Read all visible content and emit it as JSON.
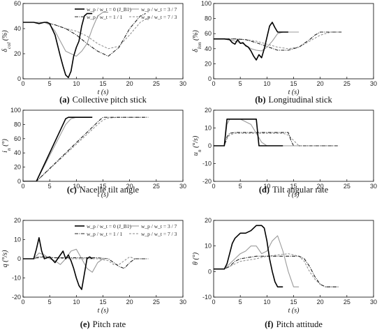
{
  "line_styles": {
    "r0": {
      "color": "#000000",
      "width": 1.6,
      "dash": ""
    },
    "r37": {
      "color": "#9a9a9a",
      "width": 1.1,
      "dash": ""
    },
    "r11": {
      "color": "#222222",
      "width": 1.1,
      "dash": "5,1.5,1,1.5"
    },
    "r73": {
      "color": "#8a8a8a",
      "width": 1.0,
      "dash": "3,2"
    }
  },
  "legend": {
    "r0": "w_p / w_t = 0  (J_B1)",
    "r37": "w_p / w_t = 3 / 7",
    "r11": "w_p / w_t = 1 / 1",
    "r73": "w_p / w_t = 7 / 3"
  },
  "chart_data": [
    {
      "id": "a",
      "type": "line",
      "caption_letter": "(a)",
      "caption_text": "Collective pitch stick",
      "xlabel": "t (s)",
      "ylabel": "δ_col (%)",
      "xlim": [
        0,
        30
      ],
      "ylim": [
        0,
        60
      ],
      "xticks": [
        0,
        5,
        10,
        15,
        20,
        25,
        30
      ],
      "yticks": [
        0,
        20,
        40,
        60
      ],
      "grid": false,
      "legend_position": "top-right",
      "series": [
        {
          "style": "r0",
          "legend_label": "w_p / w_t = 0  (J_B1)",
          "x": [
            0,
            2,
            3,
            4,
            4.5,
            5,
            6,
            7,
            7.5,
            8,
            8.5,
            9,
            9.5,
            10,
            10.5,
            11,
            11.5,
            12,
            12.5,
            13
          ],
          "y": [
            45,
            45,
            44,
            45,
            45,
            44,
            35,
            18,
            10,
            3,
            1,
            6,
            18,
            25,
            30,
            42,
            50,
            52,
            52,
            52
          ]
        },
        {
          "style": "r37",
          "legend_label": "w_p / w_t = 3 / 7",
          "x": [
            0,
            2,
            4,
            5,
            6,
            7,
            8,
            9,
            10,
            11,
            12,
            13,
            14,
            15,
            16
          ],
          "y": [
            45,
            45,
            45,
            43,
            38,
            30,
            22,
            20,
            18,
            22,
            28,
            40,
            50,
            53,
            53
          ]
        },
        {
          "style": "r11",
          "legend_label": "w_p / w_t = 1 / 1",
          "x": [
            0,
            2,
            4,
            6,
            8,
            10,
            12,
            14,
            16,
            18,
            20,
            22,
            23
          ],
          "y": [
            45,
            45,
            45,
            43,
            40,
            35,
            28,
            22,
            18,
            25,
            40,
            50,
            52
          ]
        },
        {
          "style": "r73",
          "legend_label": "w_p / w_t = 7 / 3",
          "x": [
            0,
            2,
            4,
            6,
            8,
            10,
            12,
            14,
            16,
            18,
            20,
            22,
            24
          ],
          "y": [
            45,
            45,
            45,
            43,
            40,
            38,
            34,
            28,
            24,
            26,
            35,
            45,
            50
          ]
        }
      ]
    },
    {
      "id": "b",
      "type": "line",
      "caption_letter": "(b)",
      "caption_text": "Longitudinal stick",
      "xlabel": "t (s)",
      "ylabel": "δ_lon (%)",
      "xlim": [
        0,
        30
      ],
      "ylim": [
        0,
        100
      ],
      "xticks": [
        0,
        5,
        10,
        15,
        20,
        25,
        30
      ],
      "yticks": [
        0,
        20,
        40,
        60,
        80,
        100
      ],
      "grid": false,
      "series": [
        {
          "style": "r0",
          "x": [
            0,
            2,
            3,
            3.5,
            4,
            4.5,
            5,
            5.5,
            6,
            6.5,
            7,
            7.5,
            8,
            8.5,
            9,
            9.5,
            10,
            10.5,
            11,
            11.5,
            12,
            13,
            14
          ],
          "y": [
            53,
            53,
            52,
            48,
            46,
            52,
            47,
            48,
            44,
            42,
            37,
            30,
            25,
            32,
            28,
            40,
            55,
            70,
            75,
            68,
            62,
            62,
            62
          ]
        },
        {
          "style": "r37",
          "x": [
            0,
            2,
            3,
            4,
            5,
            6,
            7,
            8,
            9,
            10,
            11,
            12,
            13,
            14,
            15,
            16
          ],
          "y": [
            53,
            53,
            52,
            50,
            48,
            45,
            40,
            38,
            37,
            42,
            50,
            60,
            62,
            62,
            62,
            62
          ]
        },
        {
          "style": "r11",
          "x": [
            0,
            2,
            4,
            6,
            8,
            10,
            12,
            14,
            16,
            18,
            19,
            20,
            22,
            24
          ],
          "y": [
            53,
            53,
            53,
            52,
            48,
            43,
            38,
            38,
            42,
            52,
            58,
            62,
            62,
            62
          ]
        },
        {
          "style": "r73",
          "x": [
            0,
            2,
            4,
            6,
            8,
            10,
            12,
            14,
            16,
            18,
            20,
            22,
            24
          ],
          "y": [
            53,
            53,
            53,
            52,
            50,
            46,
            42,
            40,
            42,
            50,
            58,
            62,
            62
          ]
        }
      ]
    },
    {
      "id": "c",
      "type": "line",
      "caption_letter": "(c)",
      "caption_text": "Nacelle tilt angle",
      "xlabel": "t (s)",
      "ylabel": "i_n (°)",
      "xlim": [
        0,
        30
      ],
      "ylim": [
        0,
        100
      ],
      "xticks": [
        0,
        5,
        10,
        15,
        20,
        25,
        30
      ],
      "yticks": [
        0,
        20,
        40,
        60,
        80,
        100
      ],
      "grid": false,
      "series": [
        {
          "style": "r0",
          "x": [
            0,
            2,
            2.5,
            8,
            8.5,
            10,
            12,
            13
          ],
          "y": [
            0,
            0,
            0,
            88,
            90,
            90,
            90,
            90
          ]
        },
        {
          "style": "r37",
          "x": [
            0,
            2,
            2.5,
            8,
            9,
            10,
            13
          ],
          "y": [
            0,
            0,
            0,
            80,
            88,
            90,
            90
          ]
        },
        {
          "style": "r11",
          "x": [
            0,
            2,
            2.5,
            14.5,
            15,
            17,
            19,
            21,
            23.5
          ],
          "y": [
            0,
            0,
            0,
            87,
            90,
            90,
            90,
            90,
            90
          ]
        },
        {
          "style": "r73",
          "x": [
            0,
            2,
            2.5,
            14,
            15,
            16,
            18,
            20,
            23
          ],
          "y": [
            0,
            0,
            0,
            80,
            86,
            89,
            90,
            90,
            90
          ]
        }
      ]
    },
    {
      "id": "d",
      "type": "line",
      "caption_letter": "(d)",
      "caption_text": "Tilt angular rate",
      "xlabel": "t (s)",
      "ylabel": "u_n (°/s)",
      "xlim": [
        0,
        30
      ],
      "ylim": [
        -20,
        20
      ],
      "xticks": [
        0,
        5,
        10,
        15,
        20,
        25,
        30
      ],
      "yticks": [
        -20,
        -10,
        0,
        10,
        20
      ],
      "grid": false,
      "series": [
        {
          "style": "r0",
          "x": [
            0,
            2,
            2.5,
            3,
            8,
            8.5,
            9,
            12,
            13
          ],
          "y": [
            0,
            0,
            15,
            15,
            15,
            0,
            0,
            0,
            0
          ]
        },
        {
          "style": "r37",
          "x": [
            0,
            2,
            2.5,
            3,
            5,
            7,
            8,
            9,
            10,
            11,
            16
          ],
          "y": [
            0,
            0,
            12,
            15,
            15,
            12,
            7,
            2,
            0,
            0,
            0
          ]
        },
        {
          "style": "r11",
          "x": [
            0,
            2,
            2.5,
            3,
            4,
            14,
            14.5,
            15,
            18,
            21,
            23.5
          ],
          "y": [
            0,
            0,
            5,
            7,
            7.5,
            7.5,
            3,
            0,
            0,
            0,
            0
          ]
        },
        {
          "style": "r73",
          "x": [
            0,
            2,
            2.5,
            3,
            4,
            13,
            14,
            15,
            16,
            18,
            20,
            23
          ],
          "y": [
            0,
            0,
            4,
            6,
            7,
            7,
            6,
            3,
            0,
            0,
            0,
            0
          ]
        }
      ]
    },
    {
      "id": "e",
      "type": "line",
      "caption_letter": "(e)",
      "caption_text": "Pitch rate",
      "xlabel": "t (s)",
      "ylabel": "q (°/s)",
      "xlim": [
        0,
        30
      ],
      "ylim": [
        -20,
        20
      ],
      "xticks": [
        0,
        5,
        10,
        15,
        20,
        25,
        30
      ],
      "yticks": [
        -20,
        -10,
        0,
        10,
        20
      ],
      "grid": false,
      "legend_position": "top-right",
      "series": [
        {
          "style": "r0",
          "x": [
            0,
            2,
            2.5,
            3,
            3.5,
            4,
            5,
            6,
            7,
            7.5,
            8,
            8.5,
            9,
            9.5,
            10,
            10.5,
            11,
            11.5,
            12,
            12.5,
            13
          ],
          "y": [
            0,
            0,
            5,
            11,
            4,
            0,
            1,
            -2,
            2,
            4,
            0,
            2,
            -1,
            -5,
            -10,
            -14,
            -16,
            -8,
            0,
            1,
            0
          ]
        },
        {
          "style": "r37",
          "x": [
            0,
            2,
            3,
            4,
            5,
            6,
            7,
            8,
            9,
            10,
            11,
            12,
            13,
            14,
            15,
            16
          ],
          "y": [
            0,
            0,
            3,
            2,
            0,
            -1,
            -3,
            0,
            4,
            5,
            0,
            -5,
            -7,
            -2,
            0,
            0
          ]
        },
        {
          "style": "r11",
          "x": [
            0,
            2,
            3,
            4,
            6,
            8,
            10,
            12,
            14,
            16,
            17,
            18,
            19,
            20,
            21,
            22,
            23.5
          ],
          "y": [
            0,
            0,
            1,
            1,
            0.5,
            0.5,
            0.5,
            0.5,
            0.5,
            0,
            -2,
            -4,
            -5,
            -2,
            0,
            0,
            0
          ]
        },
        {
          "style": "r73",
          "x": [
            0,
            2,
            3,
            4,
            6,
            8,
            10,
            12,
            14,
            16,
            17,
            18,
            19,
            20,
            21,
            23
          ],
          "y": [
            0,
            0,
            0.5,
            1,
            0.5,
            0,
            0,
            0,
            0,
            -1,
            -3,
            -3,
            -1,
            1,
            0,
            0
          ]
        }
      ]
    },
    {
      "id": "f",
      "type": "line",
      "caption_letter": "(f)",
      "caption_text": "Pitch attitude",
      "xlabel": "t (s)",
      "ylabel": "θ (°)",
      "xlim": [
        0,
        30
      ],
      "ylim": [
        -10,
        20
      ],
      "xticks": [
        0,
        5,
        10,
        15,
        20,
        25,
        30
      ],
      "yticks": [
        -10,
        0,
        10,
        20
      ],
      "grid": false,
      "series": [
        {
          "style": "r0",
          "x": [
            0,
            2,
            2.5,
            3,
            3.5,
            4,
            5,
            6,
            7,
            8,
            9,
            9.5,
            10,
            10.5,
            11,
            11.5,
            12,
            12.5,
            13
          ],
          "y": [
            1,
            1,
            3,
            7,
            11,
            13,
            15,
            15,
            16,
            18,
            18,
            17,
            12,
            5,
            0,
            -4,
            -6,
            -6,
            -6
          ]
        },
        {
          "style": "r37",
          "x": [
            0,
            2,
            3,
            4,
            5,
            6,
            7,
            8,
            9,
            10,
            11,
            12,
            13,
            14,
            15,
            16
          ],
          "y": [
            1,
            1,
            3,
            5,
            7,
            8,
            10,
            10,
            7,
            8,
            12,
            14,
            8,
            0,
            -6,
            -6
          ]
        },
        {
          "style": "r11",
          "x": [
            0,
            2,
            3,
            4,
            5,
            8,
            10,
            12,
            14,
            16,
            17,
            18,
            19,
            20,
            21,
            22,
            23.5
          ],
          "y": [
            1,
            1,
            2,
            4,
            5,
            6,
            6,
            6,
            6,
            6,
            5,
            2,
            -2,
            -5,
            -6,
            -6,
            -6
          ]
        },
        {
          "style": "r73",
          "x": [
            0,
            2,
            3,
            4,
            5,
            8,
            10,
            12,
            14,
            16,
            17,
            18,
            19,
            20,
            21,
            23
          ],
          "y": [
            1,
            1,
            2,
            3,
            4,
            5,
            6,
            6.5,
            7,
            6,
            4,
            0,
            -3,
            -5,
            -6,
            -6
          ]
        }
      ]
    }
  ]
}
